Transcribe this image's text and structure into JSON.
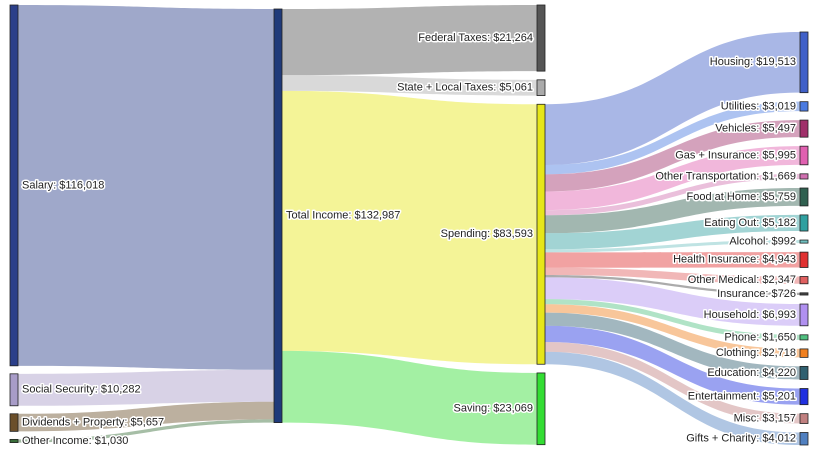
{
  "chart_data": {
    "type": "sankey",
    "nodes": [
      {
        "label": "Salary: $116,018",
        "value": 116018,
        "color": "#2b3f8a"
      },
      {
        "label": "Social Security: $10,282",
        "value": 10282,
        "color": "#a89cc8"
      },
      {
        "label": "Dividends + Property: $5,657",
        "value": 5657,
        "color": "#6b4f2a"
      },
      {
        "label": "Other Income: $1,030",
        "value": 1030,
        "color": "#3a6e3a"
      },
      {
        "label": "Total Income: $132,987",
        "value": 132987,
        "color": "#1f3a7a"
      },
      {
        "label": "Federal Taxes: $21,264",
        "value": 21264,
        "color": "#555555"
      },
      {
        "label": "State + Local Taxes: $5,061",
        "value": 5061,
        "color": "#aaaaaa"
      },
      {
        "label": "Spending: $83,593",
        "value": 83593,
        "color": "#e6e619"
      },
      {
        "label": "Saving: $23,069",
        "value": 23069,
        "color": "#33dd33"
      },
      {
        "label": "Housing: $19,513",
        "value": 19513,
        "color": "#4060c8"
      },
      {
        "label": "Utilities: $3,019",
        "value": 3019,
        "color": "#4a7ae0"
      },
      {
        "label": "Vehicles: $5,497",
        "value": 5497,
        "color": "#a0306a"
      },
      {
        "label": "Gas + Insurance: $5,995",
        "value": 5995,
        "color": "#e060b0"
      },
      {
        "label": "Other Transportation: $1,669",
        "value": 1669,
        "color": "#d070b0"
      },
      {
        "label": "Food at Home: $5,759",
        "value": 5759,
        "color": "#306050"
      },
      {
        "label": "Eating Out: $5,182",
        "value": 5182,
        "color": "#30a0a0"
      },
      {
        "label": "Alcohol: $992",
        "value": 992,
        "color": "#70c0c0"
      },
      {
        "label": "Health Insurance: $4,943",
        "value": 4943,
        "color": "#e03030"
      },
      {
        "label": "Other Medical: $2,347",
        "value": 2347,
        "color": "#e06060"
      },
      {
        "label": "Insurance: $726",
        "value": 726,
        "color": "#444444"
      },
      {
        "label": "Household: $6,993",
        "value": 6993,
        "color": "#b090f0"
      },
      {
        "label": "Phone: $1,650",
        "value": 1650,
        "color": "#50c080"
      },
      {
        "label": "Clothing: $2,718",
        "value": 2718,
        "color": "#f08020"
      },
      {
        "label": "Education: $4,220",
        "value": 4220,
        "color": "#306070"
      },
      {
        "label": "Entertainment: $5,201",
        "value": 5201,
        "color": "#2030e0"
      },
      {
        "label": "Misc: $3,157",
        "value": 3157,
        "color": "#c08080"
      },
      {
        "label": "Gifts + Charity: $4,012",
        "value": 4012,
        "color": "#5080c0"
      }
    ],
    "links": [
      {
        "source": 0,
        "target": 4,
        "value": 116018
      },
      {
        "source": 1,
        "target": 4,
        "value": 10282
      },
      {
        "source": 2,
        "target": 4,
        "value": 5657
      },
      {
        "source": 3,
        "target": 4,
        "value": 1030
      },
      {
        "source": 4,
        "target": 5,
        "value": 21264
      },
      {
        "source": 4,
        "target": 6,
        "value": 5061
      },
      {
        "source": 4,
        "target": 7,
        "value": 83593
      },
      {
        "source": 4,
        "target": 8,
        "value": 23069
      },
      {
        "source": 7,
        "target": 9,
        "value": 19513
      },
      {
        "source": 7,
        "target": 10,
        "value": 3019
      },
      {
        "source": 7,
        "target": 11,
        "value": 5497
      },
      {
        "source": 7,
        "target": 12,
        "value": 5995
      },
      {
        "source": 7,
        "target": 13,
        "value": 1669
      },
      {
        "source": 7,
        "target": 14,
        "value": 5759
      },
      {
        "source": 7,
        "target": 15,
        "value": 5182
      },
      {
        "source": 7,
        "target": 16,
        "value": 992
      },
      {
        "source": 7,
        "target": 17,
        "value": 4943
      },
      {
        "source": 7,
        "target": 18,
        "value": 2347
      },
      {
        "source": 7,
        "target": 19,
        "value": 726
      },
      {
        "source": 7,
        "target": 20,
        "value": 6993
      },
      {
        "source": 7,
        "target": 21,
        "value": 1650
      },
      {
        "source": 7,
        "target": 22,
        "value": 2718
      },
      {
        "source": 7,
        "target": 23,
        "value": 4220
      },
      {
        "source": 7,
        "target": 24,
        "value": 5201
      },
      {
        "source": 7,
        "target": 25,
        "value": 3157
      },
      {
        "source": 7,
        "target": 26,
        "value": 4012
      }
    ]
  }
}
